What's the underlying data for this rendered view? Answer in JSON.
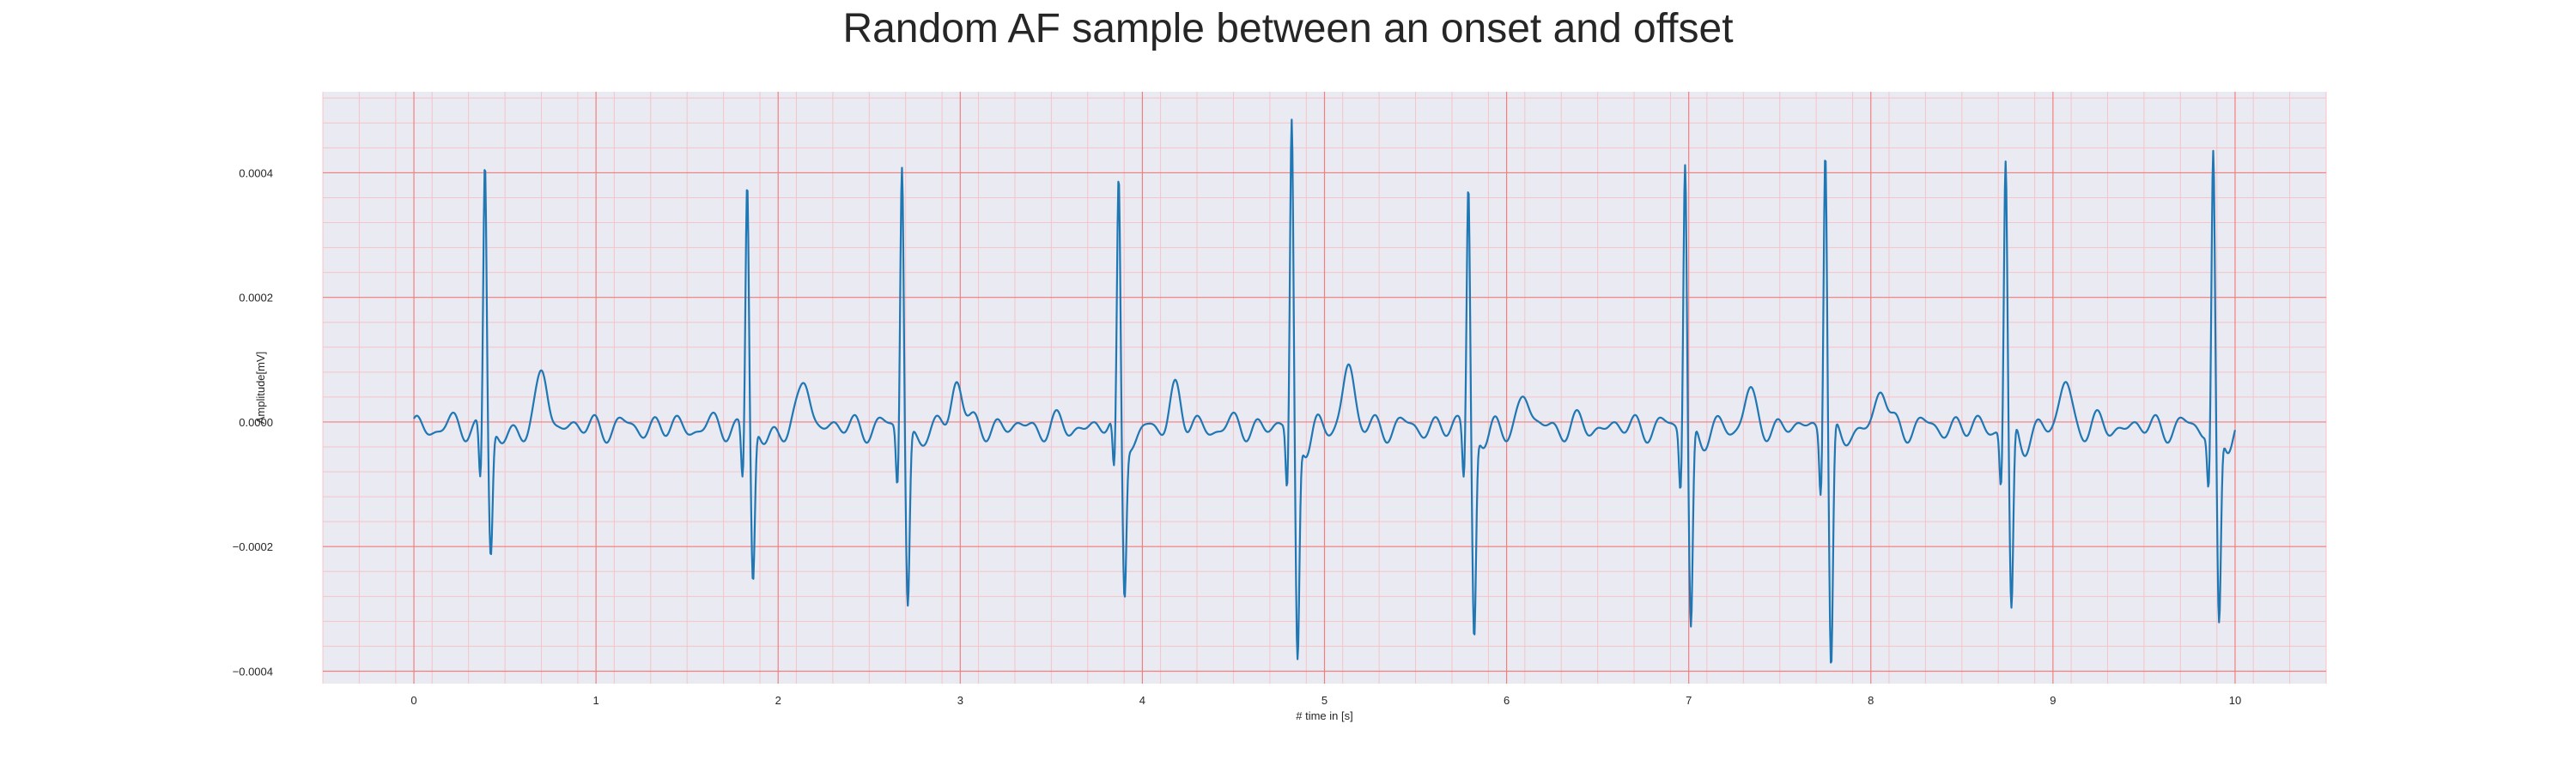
{
  "chart_data": {
    "type": "line",
    "title": "Random AF sample between an onset and offset",
    "xlabel": "# time in [s]",
    "ylabel": "Amplitude[mV]",
    "xlim": [
      -0.5,
      10.5
    ],
    "ylim": [
      -0.00042,
      0.00053
    ],
    "xticks": [
      0,
      1,
      2,
      3,
      4,
      5,
      6,
      7,
      8,
      9,
      10
    ],
    "xtick_labels": [
      "0",
      "1",
      "2",
      "3",
      "4",
      "5",
      "6",
      "7",
      "8",
      "9",
      "10"
    ],
    "yticks": [
      -0.0004,
      -0.0002,
      0.0,
      0.0002,
      0.0004
    ],
    "ytick_labels": [
      "−0.0004",
      "−0.0002",
      "0.0000",
      "0.0002",
      "0.0004"
    ],
    "grid": true,
    "minor_grid": true,
    "x_range_of_series": [
      0,
      10
    ],
    "series": [
      {
        "r_peaks": [
          {
            "t": 0.39,
            "peak": 0.00043,
            "s": -0.0002
          },
          {
            "t": 1.83,
            "peak": 0.0004,
            "s": -0.000245
          },
          {
            "t": 2.68,
            "peak": 0.000435,
            "s": -0.000275
          },
          {
            "t": 3.87,
            "peak": 0.000395,
            "s": -0.00025
          },
          {
            "t": 4.82,
            "peak": 0.00049,
            "s": -0.000365
          },
          {
            "t": 5.79,
            "peak": 0.0004,
            "s": -0.000325
          },
          {
            "t": 6.98,
            "peak": 0.00044,
            "s": -0.00032
          },
          {
            "t": 7.75,
            "peak": 0.000465,
            "s": -0.000385
          },
          {
            "t": 8.74,
            "peak": 0.00043,
            "s": -0.000305
          },
          {
            "t": 9.88,
            "peak": 0.000435,
            "s": -0.00032
          }
        ],
        "t_waves": [
          {
            "t": 0.71,
            "amp": 8.5e-05
          },
          {
            "t": 2.15,
            "amp": 7.5e-05
          },
          {
            "t": 2.98,
            "amp": 8e-05
          },
          {
            "t": 4.18,
            "amp": 6e-05
          },
          {
            "t": 5.13,
            "amp": 0.0001
          },
          {
            "t": 6.1,
            "amp": 5e-05
          },
          {
            "t": 7.33,
            "amp": 5e-05
          },
          {
            "t": 8.06,
            "amp": 6e-05
          },
          {
            "t": 9.07,
            "amp": 7e-05
          }
        ]
      }
    ]
  },
  "colors": {
    "background": "#eaeaf2",
    "major_grid": "#f08080",
    "minor_grid": "#f4c4c8",
    "line": "#1f77b4",
    "text": "#262626"
  }
}
